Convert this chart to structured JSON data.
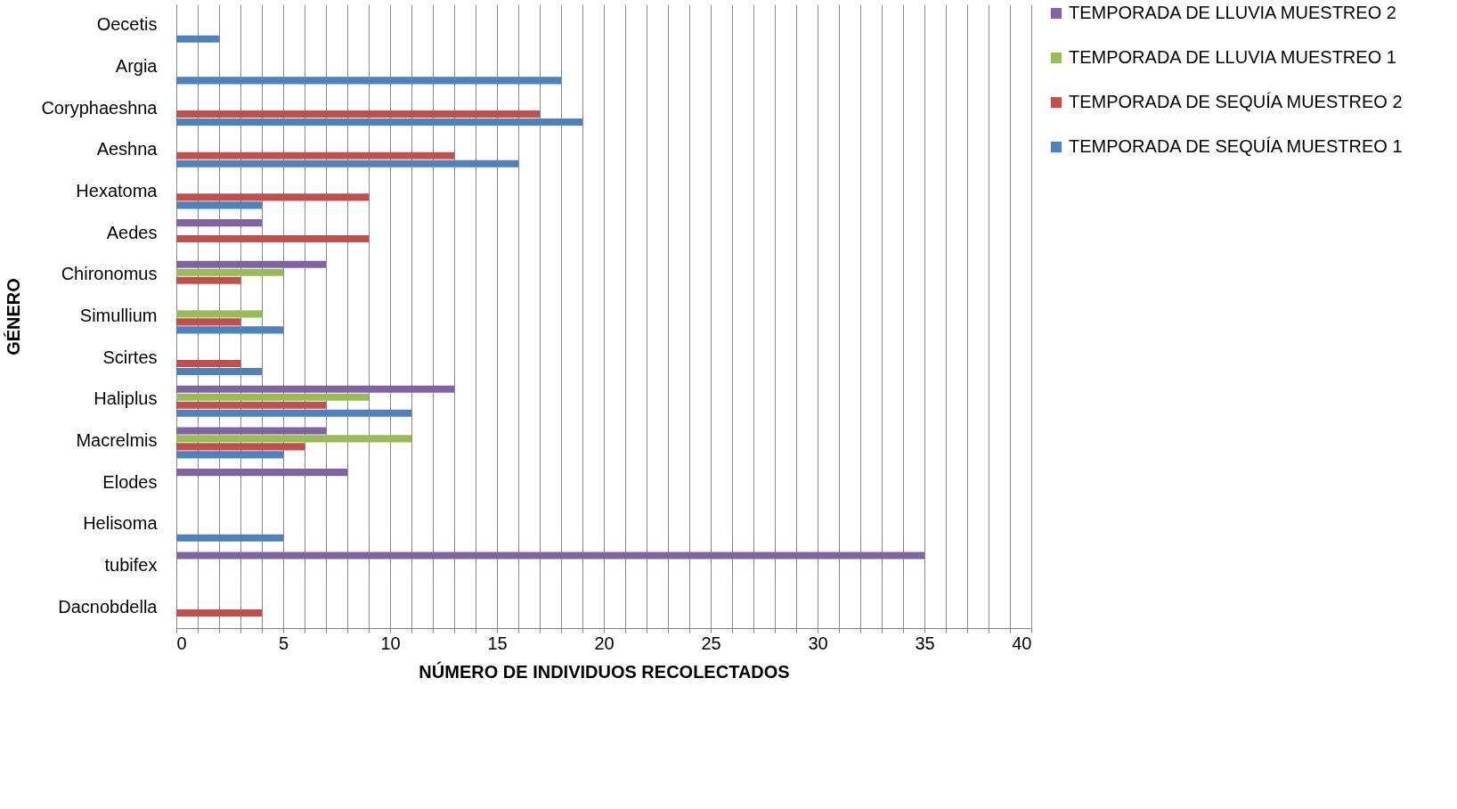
{
  "chart_data": {
    "type": "bar",
    "orientation": "horizontal",
    "xlabel": "NÚMERO DE INDIVIDUOS RECOLECTADOS",
    "ylabel": "GÉNERO",
    "categories": [
      "Oecetis",
      "Argia",
      "Coryphaeshna",
      "Aeshna",
      "Hexatoma",
      "Aedes",
      "Chironomus",
      "Simullium",
      "Scirtes",
      "Haliplus",
      "Macrelmis",
      "Elodes",
      "Helisoma",
      "tubifex",
      "Dacnobdella"
    ],
    "series": [
      {
        "name": "TEMPORADA DE LLUVIA MUESTREO 2",
        "color": "#8064a2",
        "values": [
          null,
          null,
          null,
          null,
          null,
          4,
          7,
          null,
          null,
          13,
          7,
          8,
          null,
          35,
          null
        ]
      },
      {
        "name": "TEMPORADA DE LLUVIA MUESTREO 1",
        "color": "#9bbb59",
        "values": [
          null,
          null,
          null,
          null,
          null,
          null,
          5,
          4,
          null,
          9,
          11,
          null,
          null,
          null,
          null
        ]
      },
      {
        "name": "TEMPORADA DE SEQUÍA MUESTREO 2",
        "color": "#c0504d",
        "values": [
          null,
          null,
          17,
          13,
          9,
          9,
          3,
          3,
          3,
          7,
          6,
          null,
          null,
          null,
          4
        ]
      },
      {
        "name": "TEMPORADA DE SEQUÍA MUESTREO 1",
        "color": "#4f81bd",
        "values": [
          2,
          18,
          19,
          16,
          4,
          null,
          null,
          5,
          4,
          11,
          5,
          null,
          5,
          null,
          null
        ]
      }
    ],
    "xlim": [
      0,
      40
    ],
    "xticks": [
      0,
      {
        "value": 1,
        "label": null
      },
      {
        "value": 2,
        "label": null
      },
      {
        "value": 3,
        "label": null
      },
      {
        "value": 4,
        "label": null
      },
      5,
      {
        "value": 6,
        "label": null
      },
      {
        "value": 7,
        "label": null
      },
      {
        "value": 8,
        "label": null
      },
      {
        "value": 9,
        "label": null
      },
      10,
      {
        "value": 11,
        "label": null
      },
      {
        "value": 12,
        "label": null
      },
      {
        "value": 13,
        "label": null
      },
      {
        "value": 14,
        "label": null
      },
      15,
      {
        "value": 16,
        "label": null
      },
      {
        "value": 17,
        "label": null
      },
      {
        "value": 18,
        "label": null
      },
      {
        "value": 19,
        "label": null
      },
      20,
      {
        "value": 21,
        "label": null
      },
      {
        "value": 22,
        "label": null
      },
      {
        "value": 23,
        "label": null
      },
      {
        "value": 24,
        "label": null
      },
      25,
      {
        "value": 26,
        "label": null
      },
      {
        "value": 27,
        "label": null
      },
      {
        "value": 28,
        "label": null
      },
      {
        "value": 29,
        "label": null
      },
      30,
      {
        "value": 31,
        "label": null
      },
      {
        "value": 32,
        "label": null
      },
      {
        "value": 33,
        "label": null
      },
      {
        "value": 34,
        "label": null
      },
      35,
      {
        "value": 36,
        "label": null
      },
      {
        "value": 37,
        "label": null
      },
      {
        "value": 38,
        "label": null
      },
      {
        "value": 39,
        "label": null
      },
      40
    ],
    "grid": "x",
    "legend": "right"
  }
}
